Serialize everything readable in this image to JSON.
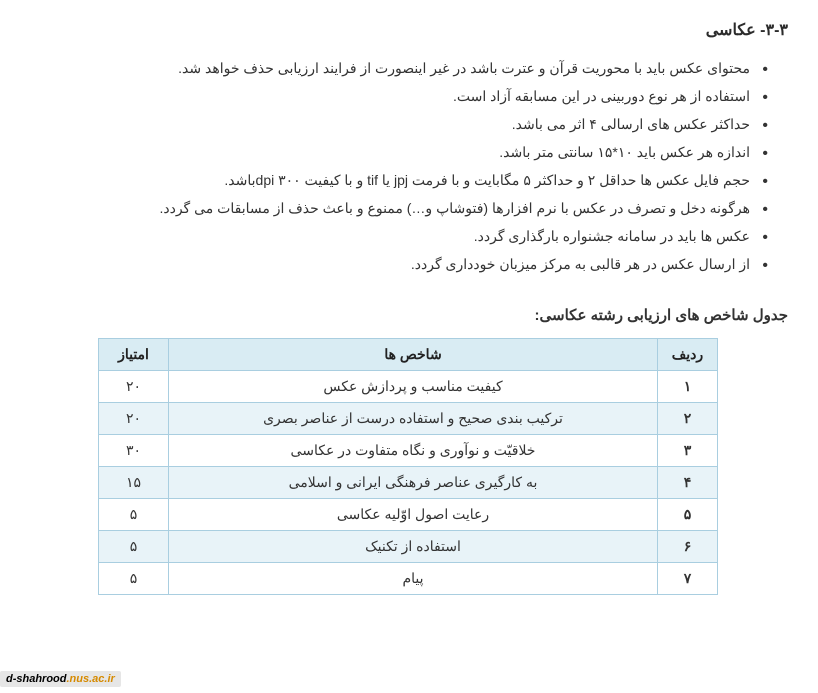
{
  "section_title": "۳-۳- عکاسی",
  "bullets": [
    "محتوای عکس باید با محوریت قرآن و عترت باشد در غیر اینصورت از فرایند ارزیابی حذف خواهد شد.",
    "استفاده از هر نوع دوربینی در این مسابقه آزاد است.",
    "حداکثر عکس های ارسالی ۴ اثر می باشد.",
    "اندازه هر عکس باید ۱۰*۱۵ سانتی متر باشد.",
    "حجم فایل عکس ها حداقل ۲ و حداکثر ۵ مگابایت و با فرمت jpj یا tif و با کیفیت dpi ۳۰۰باشد.",
    "هرگونه دخل و تصرف در عکس با نرم افزارها (فتوشاپ و…) ممنوع و باعث حذف از مسابقات می گردد.",
    "عکس ها باید در سامانه جشنواره بارگذاری گردد.",
    "از ارسال عکس در هر قالبی به مرکز میزبان خودداری گردد."
  ],
  "table_title": "جدول شاخص های ارزیابی رشته عکاسی:",
  "table": {
    "headers": {
      "row": "ردیف",
      "criteria": "شاخص ها",
      "score": "امتیاز"
    },
    "rows": [
      {
        "n": "۱",
        "c": "کیفیت مناسب و پردازش عکس",
        "s": "۲۰"
      },
      {
        "n": "۲",
        "c": "ترکیب بندی صحیح و استفاده درست از عناصر بصری",
        "s": "۲۰"
      },
      {
        "n": "۳",
        "c": "خلاقیّت و نوآوری و نگاه متفاوت در عکاسی",
        "s": "۳۰"
      },
      {
        "n": "۴",
        "c": "به کارگیری عناصر فرهنگی ایرانی و اسلامی",
        "s": "۱۵"
      },
      {
        "n": "۵",
        "c": "رعایت اصول اوّلیه عکاسی",
        "s": "۵"
      },
      {
        "n": "۶",
        "c": "استفاده از تکنیک",
        "s": "۵"
      },
      {
        "n": "۷",
        "c": "پیام",
        "s": "۵"
      }
    ]
  },
  "footer": {
    "part1": "d-shahrood",
    "part2": ".nus.ac.ir"
  }
}
